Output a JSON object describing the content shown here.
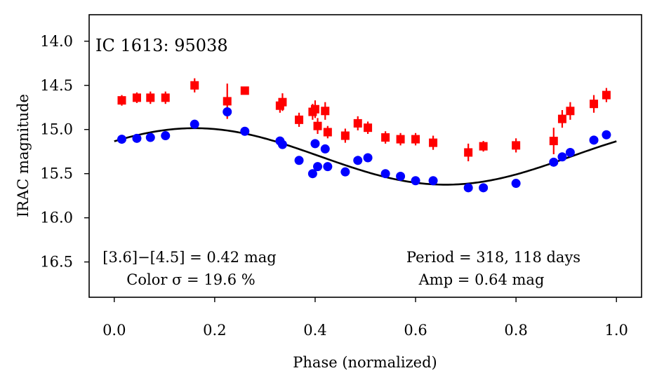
{
  "chart_data": {
    "type": "scatter",
    "title": "IC 1613: 95038",
    "xlabel": "Phase (normalized)",
    "ylabel": "IRAC magnitude",
    "xlim": [
      -0.05,
      1.05
    ],
    "ylim": [
      16.9,
      13.7
    ],
    "y_inverted": true,
    "x_ticks": [
      0.0,
      0.2,
      0.4,
      0.6,
      0.8,
      1.0
    ],
    "x_tick_labels": [
      "0.0",
      "0.2",
      "0.4",
      "0.6",
      "0.8",
      "1.0"
    ],
    "y_ticks": [
      14.0,
      14.5,
      15.0,
      15.5,
      16.0,
      16.5
    ],
    "y_tick_labels": [
      "14.0",
      "14.5",
      "15.0",
      "15.5",
      "16.0",
      "16.5"
    ],
    "grid": false,
    "annotations": {
      "color_line1": "[3.6]−[4.5] = 0.42 mag",
      "color_line2": "Color σ = 19.6 %",
      "period_line1": "Period = 318, 118 days",
      "period_line2": "Amp = 0.64 mag"
    },
    "series": [
      {
        "color": "#ff0000",
        "marker": "square",
        "x": [
          0.015,
          0.045,
          0.072,
          0.102,
          0.16,
          0.225,
          0.26,
          0.33,
          0.335,
          0.368,
          0.395,
          0.4,
          0.405,
          0.42,
          0.425,
          0.46,
          0.485,
          0.505,
          0.54,
          0.57,
          0.6,
          0.635,
          0.705,
          0.735,
          0.8,
          0.875,
          0.892,
          0.908,
          0.955,
          0.98
        ],
        "y": [
          14.67,
          14.64,
          14.64,
          14.64,
          14.5,
          14.68,
          14.56,
          14.73,
          14.69,
          14.89,
          14.8,
          14.77,
          14.96,
          14.79,
          15.03,
          15.07,
          14.93,
          14.98,
          15.09,
          15.11,
          15.11,
          15.15,
          15.26,
          15.19,
          15.18,
          15.13,
          14.88,
          14.79,
          14.71,
          14.61
        ],
        "err": [
          0.06,
          0.06,
          0.07,
          0.07,
          0.08,
          0.2,
          0.04,
          0.08,
          0.1,
          0.08,
          0.09,
          0.1,
          0.09,
          0.1,
          0.07,
          0.08,
          0.08,
          0.07,
          0.07,
          0.07,
          0.07,
          0.08,
          0.1,
          0.06,
          0.08,
          0.15,
          0.1,
          0.1,
          0.1,
          0.08
        ]
      },
      {
        "color": "#0000ff",
        "marker": "circle",
        "x": [
          0.015,
          0.045,
          0.072,
          0.102,
          0.16,
          0.225,
          0.26,
          0.33,
          0.335,
          0.368,
          0.395,
          0.4,
          0.405,
          0.42,
          0.425,
          0.46,
          0.485,
          0.505,
          0.54,
          0.57,
          0.6,
          0.635,
          0.705,
          0.735,
          0.8,
          0.875,
          0.892,
          0.908,
          0.955,
          0.98
        ],
        "y": [
          15.11,
          15.1,
          15.09,
          15.07,
          14.94,
          14.8,
          15.02,
          15.13,
          15.17,
          15.35,
          15.5,
          15.16,
          15.42,
          15.22,
          15.42,
          15.48,
          15.35,
          15.32,
          15.5,
          15.53,
          15.58,
          15.58,
          15.66,
          15.66,
          15.61,
          15.37,
          15.31,
          15.26,
          15.12,
          15.06
        ]
      },
      {
        "color": "#000000",
        "marker": "none",
        "model": "sine",
        "mean": 15.305,
        "amplitude": 0.32,
        "peak_phase": 0.16
      }
    ]
  }
}
